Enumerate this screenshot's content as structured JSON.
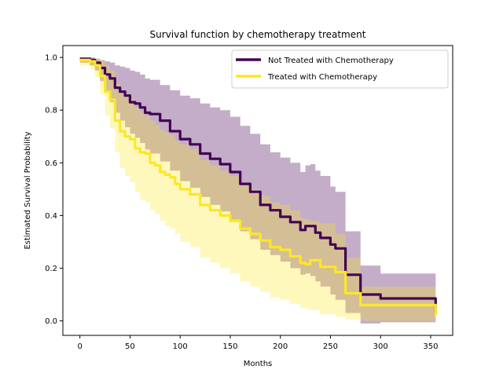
{
  "chart_data": {
    "type": "line",
    "title": "Survival function by chemotherapy treatment",
    "xlabel": "Months",
    "ylabel": "Estimated Survival Probability",
    "xlim": [
      -17,
      372
    ],
    "ylim": [
      -0.055,
      1.045
    ],
    "xticks": [
      0,
      50,
      100,
      150,
      200,
      250,
      300,
      350
    ],
    "yticks": [
      0.0,
      0.2,
      0.4,
      0.6,
      0.8,
      1.0
    ],
    "xtick_labels": [
      "0",
      "50",
      "100",
      "150",
      "200",
      "250",
      "300",
      "350"
    ],
    "ytick_labels": [
      "0.0",
      "0.2",
      "0.4",
      "0.6",
      "0.8",
      "1.0"
    ],
    "grid": false,
    "legend_position": "top-right",
    "series": [
      {
        "name": "Not Treated with Chemotherapy",
        "color": "#440154",
        "band_color": "#440154",
        "x": [
          0,
          5,
          10,
          15,
          20,
          25,
          30,
          35,
          40,
          45,
          50,
          55,
          60,
          65,
          70,
          80,
          90,
          100,
          110,
          120,
          130,
          140,
          150,
          160,
          170,
          180,
          190,
          200,
          210,
          220,
          225,
          230,
          235,
          240,
          250,
          255,
          265,
          280,
          300,
          355
        ],
        "y": [
          0.995,
          0.995,
          0.99,
          0.98,
          0.96,
          0.935,
          0.92,
          0.885,
          0.87,
          0.855,
          0.83,
          0.825,
          0.81,
          0.79,
          0.785,
          0.76,
          0.72,
          0.69,
          0.67,
          0.635,
          0.615,
          0.595,
          0.565,
          0.52,
          0.49,
          0.44,
          0.42,
          0.395,
          0.375,
          0.345,
          0.36,
          0.36,
          0.335,
          0.315,
          0.29,
          0.275,
          0.175,
          0.1,
          0.085,
          0.03
        ],
        "lower": [
          0.98,
          0.98,
          0.97,
          0.95,
          0.91,
          0.87,
          0.83,
          0.79,
          0.76,
          0.735,
          0.71,
          0.695,
          0.675,
          0.65,
          0.635,
          0.605,
          0.57,
          0.53,
          0.505,
          0.47,
          0.44,
          0.415,
          0.385,
          0.34,
          0.31,
          0.27,
          0.25,
          0.225,
          0.2,
          0.175,
          0.18,
          0.17,
          0.15,
          0.13,
          0.1,
          0.08,
          0.03,
          -0.01,
          -0.005,
          -0.005
        ],
        "upper": [
          1.0,
          1.0,
          1.0,
          0.995,
          0.99,
          0.985,
          0.98,
          0.97,
          0.965,
          0.96,
          0.95,
          0.945,
          0.935,
          0.92,
          0.915,
          0.895,
          0.875,
          0.855,
          0.845,
          0.825,
          0.81,
          0.8,
          0.775,
          0.74,
          0.71,
          0.67,
          0.64,
          0.62,
          0.6,
          0.565,
          0.59,
          0.595,
          0.57,
          0.55,
          0.51,
          0.49,
          0.34,
          0.21,
          0.18,
          0.06
        ]
      },
      {
        "name": "Treated with Chemotherapy",
        "color": "#fde725",
        "band_color": "#fde725",
        "x": [
          0,
          5,
          10,
          15,
          20,
          25,
          30,
          35,
          40,
          45,
          50,
          55,
          60,
          65,
          70,
          75,
          80,
          85,
          90,
          95,
          100,
          110,
          120,
          130,
          140,
          150,
          160,
          170,
          180,
          190,
          200,
          210,
          220,
          225,
          230,
          240,
          255,
          265,
          280,
          355
        ],
        "y": [
          0.99,
          0.99,
          0.985,
          0.97,
          0.93,
          0.87,
          0.84,
          0.76,
          0.72,
          0.7,
          0.69,
          0.655,
          0.64,
          0.635,
          0.6,
          0.59,
          0.565,
          0.555,
          0.545,
          0.52,
          0.5,
          0.48,
          0.44,
          0.42,
          0.4,
          0.38,
          0.35,
          0.33,
          0.305,
          0.28,
          0.27,
          0.245,
          0.22,
          0.215,
          0.23,
          0.205,
          0.185,
          0.105,
          0.06,
          0.02
        ],
        "lower": [
          0.97,
          0.97,
          0.955,
          0.925,
          0.86,
          0.78,
          0.73,
          0.64,
          0.58,
          0.55,
          0.525,
          0.49,
          0.46,
          0.45,
          0.42,
          0.405,
          0.38,
          0.36,
          0.35,
          0.33,
          0.3,
          0.28,
          0.24,
          0.22,
          0.2,
          0.18,
          0.15,
          0.13,
          0.11,
          0.09,
          0.08,
          0.065,
          0.05,
          0.045,
          0.04,
          0.025,
          0.015,
          0.005,
          0.0,
          0.0
        ],
        "upper": [
          1.0,
          1.0,
          1.0,
          0.995,
          0.99,
          0.97,
          0.95,
          0.9,
          0.87,
          0.85,
          0.84,
          0.81,
          0.79,
          0.78,
          0.76,
          0.745,
          0.725,
          0.715,
          0.705,
          0.685,
          0.67,
          0.65,
          0.61,
          0.59,
          0.57,
          0.55,
          0.52,
          0.5,
          0.475,
          0.45,
          0.44,
          0.42,
          0.39,
          0.385,
          0.38,
          0.37,
          0.33,
          0.24,
          0.13,
          0.05
        ]
      }
    ]
  }
}
